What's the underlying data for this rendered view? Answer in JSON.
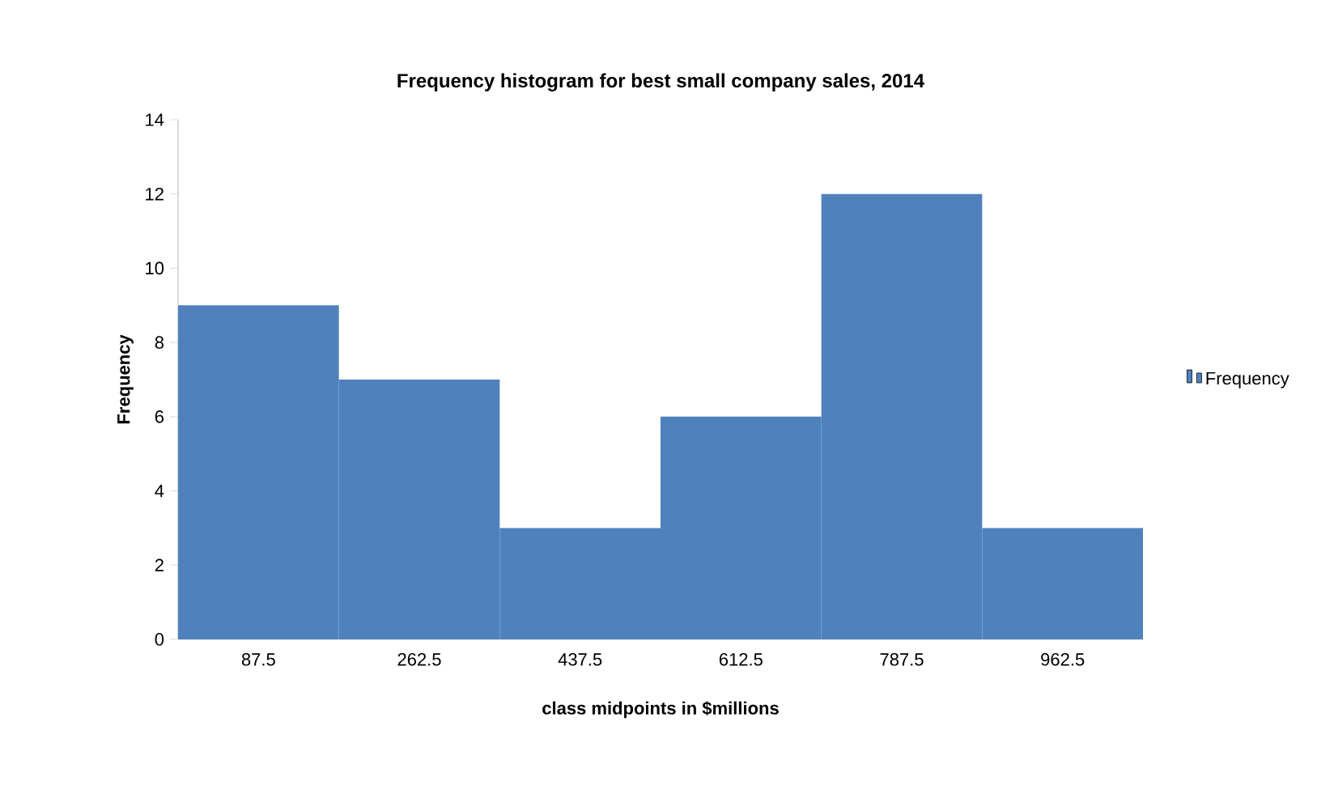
{
  "chart_data": {
    "type": "bar",
    "title": "Frequency histogram for best small company sales, 2014",
    "xlabel": "class midpoints in $millions",
    "ylabel": "Frequency",
    "categories": [
      "87.5",
      "262.5",
      "437.5",
      "612.5",
      "787.5",
      "962.5"
    ],
    "series": [
      {
        "name": "Frequency",
        "color": "#4f81bd",
        "values": [
          9,
          7,
          3,
          6,
          12,
          3
        ]
      }
    ],
    "ylim": [
      0,
      14
    ],
    "yticks": [
      0,
      2,
      4,
      6,
      8,
      10,
      12,
      14
    ],
    "legend": "right"
  }
}
